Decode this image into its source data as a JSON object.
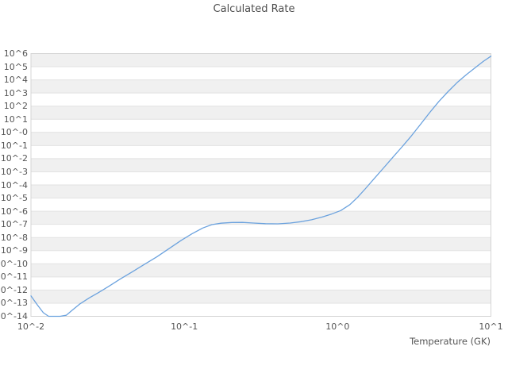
{
  "title": "Calculated Rate",
  "colors": {
    "line": "#6ba2de",
    "band": "#f0f0f0",
    "grid": "#e2e2e2",
    "border": "#d4d4d4",
    "text": "#555555"
  },
  "chart_data": {
    "type": "line",
    "title": "Calculated Rate",
    "xlabel": "Temperature (GK)",
    "ylabel": "",
    "x_scale": "log",
    "y_scale": "log",
    "xlog_range": [
      -2,
      1
    ],
    "ylog_range": [
      -14,
      6
    ],
    "xtick_labels": [
      "10^-2",
      "10^-1",
      "10^0",
      "10^1"
    ],
    "xtick_log_values": [
      -2,
      -1,
      0,
      1
    ],
    "ytick_labels": [
      "10^6",
      "10^5",
      "10^4",
      "10^3",
      "10^2",
      "10^1",
      "10^-0",
      "10^-1",
      "10^-2",
      "10^-3",
      "10^-4",
      "10^-5",
      "10^-6",
      "10^-7",
      "10^-8",
      "10^-9",
      "10^-10",
      "10^-11",
      "10^-12",
      "10^-13",
      "10^-14"
    ],
    "ytick_log_values": [
      6,
      5,
      4,
      3,
      2,
      1,
      0,
      -1,
      -2,
      -3,
      -4,
      -5,
      -6,
      -7,
      -8,
      -9,
      -10,
      -11,
      -12,
      -13,
      -14
    ],
    "grid": "horizontal-only",
    "background_bands": "alternating-gray-white",
    "legend": "none",
    "series": [
      {
        "name": "calculated-rate",
        "points_log10": [
          [
            -2.0,
            -12.45
          ],
          [
            -1.96,
            -13.1
          ],
          [
            -1.92,
            -13.72
          ],
          [
            -1.885,
            -14.02
          ],
          [
            -1.85,
            -14.18
          ],
          [
            -1.81,
            -14.16
          ],
          [
            -1.77,
            -13.92
          ],
          [
            -1.73,
            -13.52
          ],
          [
            -1.68,
            -13.05
          ],
          [
            -1.62,
            -12.6
          ],
          [
            -1.56,
            -12.2
          ],
          [
            -1.49,
            -11.7
          ],
          [
            -1.42,
            -11.18
          ],
          [
            -1.34,
            -10.62
          ],
          [
            -1.26,
            -10.05
          ],
          [
            -1.18,
            -9.48
          ],
          [
            -1.1,
            -8.85
          ],
          [
            -1.02,
            -8.22
          ],
          [
            -0.95,
            -7.72
          ],
          [
            -0.88,
            -7.28
          ],
          [
            -0.82,
            -7.02
          ],
          [
            -0.76,
            -6.91
          ],
          [
            -0.69,
            -6.86
          ],
          [
            -0.62,
            -6.85
          ],
          [
            -0.55,
            -6.9
          ],
          [
            -0.47,
            -6.95
          ],
          [
            -0.39,
            -6.96
          ],
          [
            -0.31,
            -6.9
          ],
          [
            -0.24,
            -6.8
          ],
          [
            -0.17,
            -6.65
          ],
          [
            -0.1,
            -6.44
          ],
          [
            -0.04,
            -6.22
          ],
          [
            0.02,
            -5.95
          ],
          [
            0.08,
            -5.5
          ],
          [
            0.13,
            -4.95
          ],
          [
            0.18,
            -4.3
          ],
          [
            0.24,
            -3.5
          ],
          [
            0.3,
            -2.7
          ],
          [
            0.36,
            -1.9
          ],
          [
            0.42,
            -1.1
          ],
          [
            0.48,
            -0.28
          ],
          [
            0.54,
            0.6
          ],
          [
            0.6,
            1.5
          ],
          [
            0.66,
            2.35
          ],
          [
            0.72,
            3.1
          ],
          [
            0.78,
            3.8
          ],
          [
            0.84,
            4.4
          ],
          [
            0.9,
            4.95
          ],
          [
            0.95,
            5.4
          ],
          [
            1.0,
            5.8
          ]
        ]
      }
    ]
  }
}
